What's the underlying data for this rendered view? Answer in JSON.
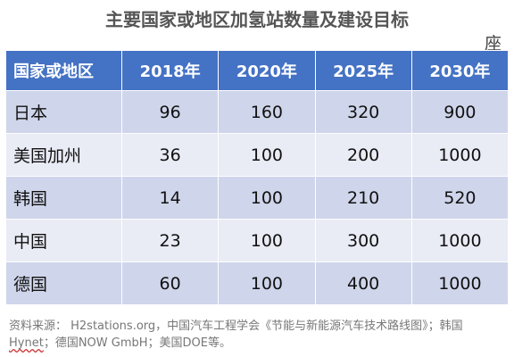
{
  "title": "主要国家或地区加氢站数量及建设目标",
  "unit": "座",
  "table": {
    "headers": [
      "国家或地区",
      "2018年",
      "2020年",
      "2025年",
      "2030年"
    ],
    "rows": [
      {
        "region": "日本",
        "values": [
          "96",
          "160",
          "320",
          "900"
        ]
      },
      {
        "region": "美国加州",
        "values": [
          "36",
          "100",
          "200",
          "1000"
        ]
      },
      {
        "region": "韩国",
        "values": [
          "14",
          "100",
          "210",
          "520"
        ]
      },
      {
        "region": "中国",
        "values": [
          "23",
          "100",
          "300",
          "1000"
        ]
      },
      {
        "region": "德国",
        "values": [
          "60",
          "100",
          "400",
          "1000"
        ]
      }
    ]
  },
  "source": {
    "part1": "资料来源： H2stations.org，中国汽车工程学会《节能与新能源汽车技术路线图》；韩国",
    "part2": "Hynet",
    "part3": "；德国NOW GmbH；美国DOE等。"
  },
  "colors": {
    "header_bg": "#4472c4",
    "row_odd": "#cfd5ea",
    "row_even": "#e9ebf5"
  }
}
